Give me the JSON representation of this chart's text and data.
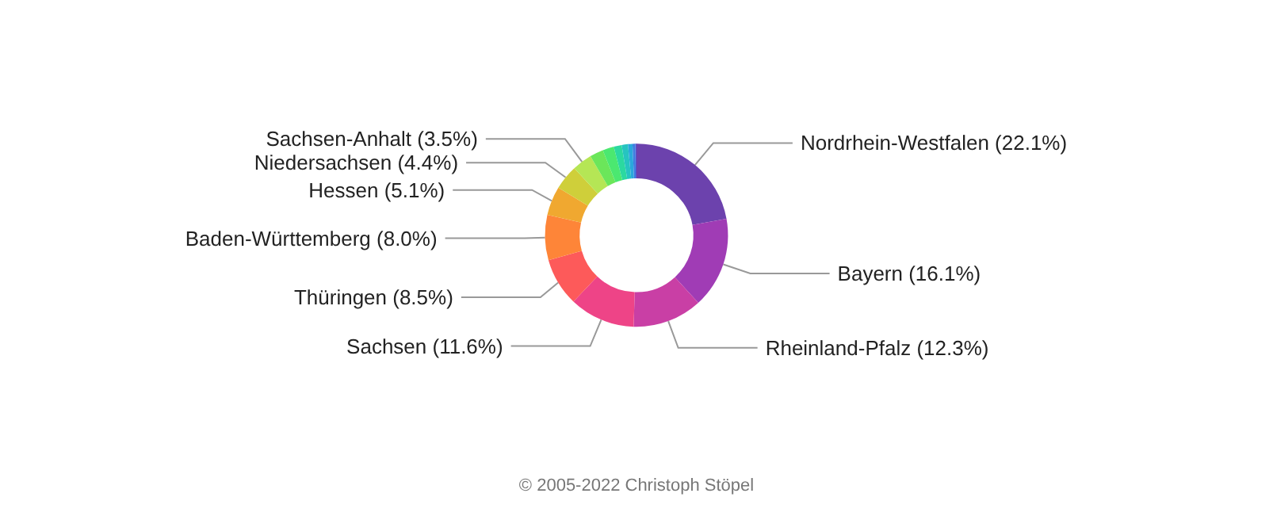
{
  "chart_data": {
    "type": "donut",
    "categories": [
      "Nordrhein-Westfalen",
      "Bayern",
      "Rheinland-Pfalz",
      "Sachsen",
      "Thüringen",
      "Baden-Württemberg",
      "Hessen",
      "Niedersachsen",
      "Sachsen-Anhalt",
      null,
      null,
      null,
      null,
      null,
      null,
      null
    ],
    "values": [
      22.1,
      16.1,
      12.3,
      11.6,
      8.5,
      8.0,
      5.1,
      4.4,
      3.5,
      2.4,
      2.0,
      1.4,
      1.1,
      0.8,
      0.5,
      0.2
    ],
    "value_labels": [
      "(22.1%)",
      "(16.1%)",
      "(12.3%)",
      "(11.6%)",
      "(8.5%)",
      "(8.0%)",
      "(5.1%)",
      "(4.4%)",
      "(3.5%)",
      null,
      null,
      null,
      null,
      null,
      null,
      null
    ],
    "colors": [
      "#6c42ad",
      "#a03cb5",
      "#c93fa5",
      "#ee4487",
      "#fd5a5a",
      "#fe8538",
      "#f0a830",
      "#cfcf3a",
      "#b5e655",
      "#6be65a",
      "#4be870",
      "#2bd9a0",
      "#26c4c0",
      "#2aa8dc",
      "#3c7fe0",
      "#4f55d0"
    ],
    "legend": false,
    "annotations": [
      "© 2005-2022 Christoph Stöpel"
    ]
  }
}
